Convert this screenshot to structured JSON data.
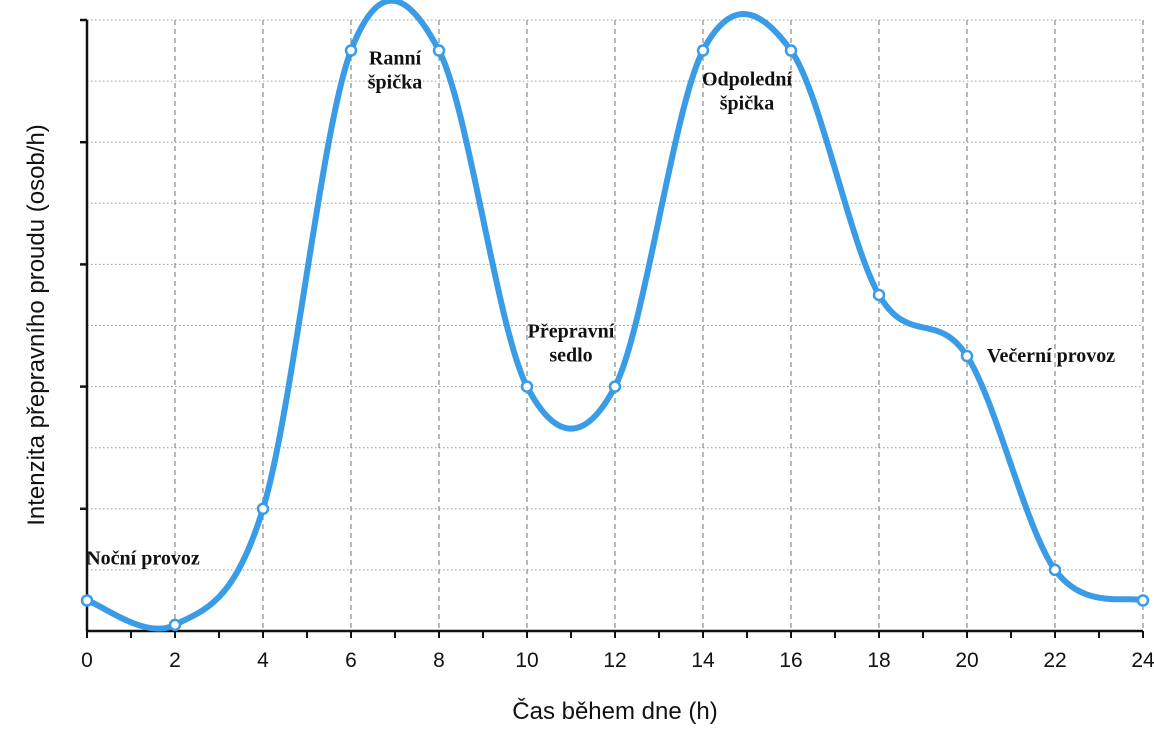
{
  "chart_data": {
    "type": "line",
    "xlabel": "Čas během dne (h)",
    "ylabel": "Intenzita přepravního proudu (osob/h)",
    "xlim": [
      0,
      24
    ],
    "ylim": [
      0,
      10
    ],
    "x_ticks": [
      "0",
      "2",
      "4",
      "6",
      "8",
      "10",
      "12",
      "14",
      "16",
      "18",
      "20",
      "22",
      "24"
    ],
    "grid": true,
    "series": [
      {
        "color": "#3a9be6",
        "points": [
          {
            "x": 0,
            "y": 0.5
          },
          {
            "x": 2,
            "y": 0.1
          },
          {
            "x": 4,
            "y": 2.0
          },
          {
            "x": 6,
            "y": 9.5
          },
          {
            "x": 8,
            "y": 9.5
          },
          {
            "x": 10,
            "y": 4.0
          },
          {
            "x": 12,
            "y": 4.0
          },
          {
            "x": 14,
            "y": 9.5
          },
          {
            "x": 16,
            "y": 9.5
          },
          {
            "x": 18,
            "y": 5.5
          },
          {
            "x": 20,
            "y": 4.5
          },
          {
            "x": 22,
            "y": 1.0
          },
          {
            "x": 24,
            "y": 0.5
          }
        ]
      }
    ],
    "annotations": [
      {
        "lines": [
          "Noční provoz"
        ],
        "x": 0,
        "y": 0.5
      },
      {
        "lines": [
          "Ranní",
          "špička"
        ],
        "x": 7,
        "y": 9.5
      },
      {
        "lines": [
          "Přepravní",
          "sedlo"
        ],
        "x": 11,
        "y": 4.0
      },
      {
        "lines": [
          "Odpolední",
          "špička"
        ],
        "x": 15,
        "y": 9.5
      },
      {
        "lines": [
          "Večerní provoz"
        ],
        "x": 20,
        "y": 4.5
      }
    ]
  }
}
